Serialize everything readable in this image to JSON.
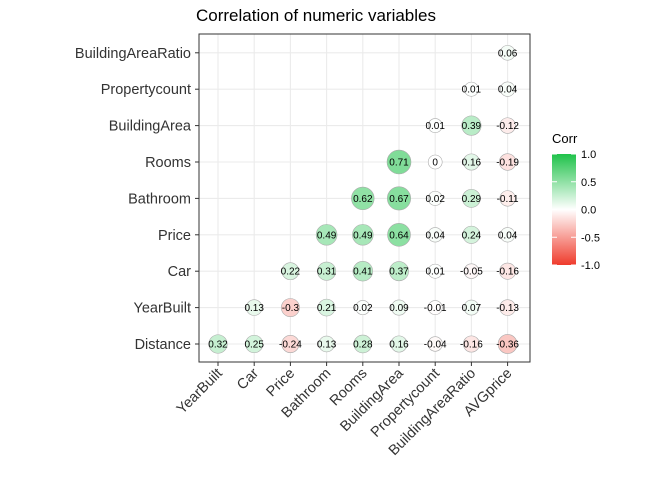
{
  "chart_data": {
    "type": "heatmap",
    "style": "lower-triangle correlation circles (ggcorr style)",
    "title": "Correlation of numeric variables",
    "x_labels": [
      "YearBuilt",
      "Car",
      "Price",
      "Bathroom",
      "Rooms",
      "BuildingArea",
      "Propertycount",
      "BuildingAreaRatio",
      "AVGprice"
    ],
    "y_labels": [
      "Distance",
      "YearBuilt",
      "Car",
      "Price",
      "Bathroom",
      "Rooms",
      "BuildingArea",
      "Propertycount",
      "BuildingAreaRatio"
    ],
    "rows": [
      {
        "y": "BuildingAreaRatio",
        "values": [
          null,
          null,
          null,
          null,
          null,
          null,
          null,
          null,
          0.06
        ],
        "labels": [
          "",
          "",
          "",
          "",
          "",
          "",
          "",
          "",
          "0.06"
        ]
      },
      {
        "y": "Propertycount",
        "values": [
          null,
          null,
          null,
          null,
          null,
          null,
          null,
          0.01,
          0.04
        ],
        "labels": [
          "",
          "",
          "",
          "",
          "",
          "",
          "",
          "0.01",
          "0.04"
        ]
      },
      {
        "y": "BuildingArea",
        "values": [
          null,
          null,
          null,
          null,
          null,
          null,
          0.01,
          0.39,
          -0.12
        ],
        "labels": [
          "",
          "",
          "",
          "",
          "",
          "",
          "0.01",
          "0.39",
          "-0.12"
        ]
      },
      {
        "y": "Rooms",
        "values": [
          null,
          null,
          null,
          null,
          null,
          0.71,
          0,
          0.16,
          -0.19
        ],
        "labels": [
          "",
          "",
          "",
          "",
          "",
          "0.71",
          "0",
          "0.16",
          "-0.19"
        ]
      },
      {
        "y": "Bathroom",
        "values": [
          null,
          null,
          null,
          null,
          0.62,
          0.67,
          0.02,
          0.29,
          -0.11
        ],
        "labels": [
          "",
          "",
          "",
          "",
          "0.62",
          "0.67",
          "0.02",
          "0.29",
          "-0.11"
        ]
      },
      {
        "y": "Price",
        "values": [
          null,
          null,
          null,
          0.49,
          0.49,
          0.64,
          0.04,
          0.24,
          0.04
        ],
        "labels": [
          "",
          "",
          "",
          "0.49",
          "0.49",
          "0.64",
          "0.04",
          "0.24",
          "0.04"
        ]
      },
      {
        "y": "Car",
        "values": [
          null,
          null,
          0.22,
          0.31,
          0.41,
          0.37,
          0.01,
          -0.05,
          -0.16
        ],
        "labels": [
          "",
          "",
          "0.22",
          "0.31",
          "0.41",
          "0.37",
          "0.01",
          "-0.05",
          "-0.16"
        ]
      },
      {
        "y": "YearBuilt",
        "values": [
          null,
          0.13,
          -0.3,
          0.21,
          0.02,
          0.09,
          -0.01,
          0.07,
          -0.13
        ],
        "labels": [
          "",
          "0.13",
          "-0.3",
          "0.21",
          "0.02",
          "0.09",
          "-0.01",
          "0.07",
          "-0.13"
        ]
      },
      {
        "y": "Distance",
        "values": [
          0.32,
          0.25,
          -0.24,
          0.13,
          0.28,
          0.16,
          -0.04,
          -0.16,
          -0.36
        ],
        "labels": [
          "0.32",
          "0.25",
          "-0.24",
          "0.13",
          "0.28",
          "0.16",
          "-0.04",
          "-0.16",
          "-0.36"
        ]
      }
    ],
    "legend": {
      "title": "Corr",
      "position": "right",
      "ticks": [
        1.0,
        0.5,
        0.0,
        -0.5,
        -1.0
      ],
      "tick_labels": [
        "1.0",
        "0.5",
        "0.0",
        "-0.5",
        "-1.0"
      ],
      "range": [
        -1,
        1
      ]
    },
    "colors": {
      "positive": "#1fc24a",
      "neutral": "#ffffff",
      "negative": "#ef3b2c",
      "grid": "#ebebeb",
      "panel_border": "#333333",
      "circle_stroke": "#aaaaaa"
    },
    "grid": true
  }
}
